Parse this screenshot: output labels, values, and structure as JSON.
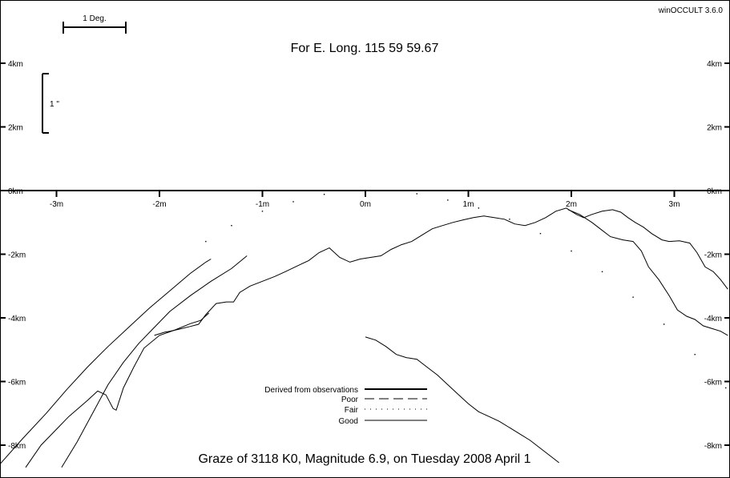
{
  "window": {
    "version": "winOCCULT 3.6.0"
  },
  "chart_data": {
    "type": "line",
    "title": "For E. Long.  115 59 59.67",
    "footer": "Graze of     3118   K0,  Magnitude   6.9,  on Tuesday  2008  April   1",
    "scale_bars": {
      "degree_label": "1 Deg.",
      "arcsec_label": "1 \""
    },
    "xlim": [
      -3.55,
      3.52
    ],
    "ylim": [
      -8.7,
      6
    ],
    "x_ticks": [
      {
        "value": -3,
        "label": "-3m"
      },
      {
        "value": -2,
        "label": "-2m"
      },
      {
        "value": -1,
        "label": "-1m"
      },
      {
        "value": 0,
        "label": "0m"
      },
      {
        "value": 1,
        "label": "1m"
      },
      {
        "value": 2,
        "label": "2m"
      },
      {
        "value": 3,
        "label": "3m"
      }
    ],
    "y_ticks": [
      {
        "value": 4,
        "label": "4km"
      },
      {
        "value": 2,
        "label": "2km"
      },
      {
        "value": 0,
        "label": "0km"
      },
      {
        "value": -2,
        "label": "-2km"
      },
      {
        "value": -4,
        "label": "-4km"
      },
      {
        "value": -6,
        "label": "-6km"
      },
      {
        "value": -8,
        "label": "-8km"
      }
    ],
    "legend": [
      {
        "label": "Derived from observations",
        "style": "thick"
      },
      {
        "label": "Poor",
        "style": "dashed"
      },
      {
        "label": "Fair",
        "style": "dotted"
      },
      {
        "label": "Good",
        "style": "solid"
      }
    ],
    "series": [
      {
        "style": "solid",
        "points": [
          [
            -3.55,
            -8.6
          ],
          [
            -3.33,
            -7.8
          ],
          [
            -3.1,
            -7.0
          ],
          [
            -2.9,
            -6.25
          ],
          [
            -2.7,
            -5.55
          ],
          [
            -2.5,
            -4.9
          ],
          [
            -2.3,
            -4.3
          ],
          [
            -2.1,
            -3.7
          ],
          [
            -1.9,
            -3.15
          ],
          [
            -1.7,
            -2.6
          ],
          [
            -1.55,
            -2.25
          ],
          [
            -1.5,
            -2.15
          ]
        ]
      },
      {
        "style": "solid",
        "points": [
          [
            -3.3,
            -8.7
          ],
          [
            -3.15,
            -8.0
          ],
          [
            -3.0,
            -7.5
          ],
          [
            -2.88,
            -7.1
          ],
          [
            -2.7,
            -6.6
          ],
          [
            -2.6,
            -6.3
          ],
          [
            -2.52,
            -6.42
          ],
          [
            -2.45,
            -6.85
          ],
          [
            -2.42,
            -6.9
          ],
          [
            -2.35,
            -6.2
          ],
          [
            -2.25,
            -5.55
          ],
          [
            -2.15,
            -4.95
          ],
          [
            -2.0,
            -4.55
          ],
          [
            -1.85,
            -4.38
          ],
          [
            -1.7,
            -4.18
          ],
          [
            -1.6,
            -4.08
          ],
          [
            -1.52,
            -3.85
          ]
        ]
      },
      {
        "style": "solid",
        "points": [
          [
            -2.95,
            -8.7
          ],
          [
            -2.8,
            -7.9
          ],
          [
            -2.65,
            -7.0
          ],
          [
            -2.5,
            -6.1
          ],
          [
            -2.35,
            -5.4
          ],
          [
            -2.2,
            -4.8
          ],
          [
            -2.05,
            -4.3
          ],
          [
            -1.9,
            -3.8
          ],
          [
            -1.7,
            -3.3
          ],
          [
            -1.5,
            -2.85
          ],
          [
            -1.3,
            -2.45
          ],
          [
            -1.15,
            -2.05
          ]
        ]
      },
      {
        "style": "solid",
        "points": [
          [
            -2.05,
            -4.55
          ],
          [
            -1.95,
            -4.45
          ],
          [
            -1.9,
            -4.42
          ],
          [
            -1.8,
            -4.35
          ],
          [
            -1.7,
            -4.27
          ],
          [
            -1.62,
            -4.2
          ],
          [
            -1.55,
            -3.9
          ],
          [
            -1.45,
            -3.55
          ],
          [
            -1.35,
            -3.5
          ],
          [
            -1.28,
            -3.5
          ],
          [
            -1.22,
            -3.2
          ],
          [
            -1.12,
            -3.0
          ],
          [
            -1.0,
            -2.85
          ],
          [
            -0.88,
            -2.7
          ],
          [
            -0.78,
            -2.55
          ],
          [
            -0.65,
            -2.35
          ],
          [
            -0.55,
            -2.2
          ],
          [
            -0.45,
            -1.95
          ],
          [
            -0.35,
            -1.8
          ],
          [
            -0.25,
            -2.1
          ],
          [
            -0.15,
            -2.25
          ],
          [
            -0.05,
            -2.15
          ],
          [
            0.05,
            -2.1
          ],
          [
            0.15,
            -2.05
          ],
          [
            0.25,
            -1.85
          ],
          [
            0.35,
            -1.7
          ],
          [
            0.45,
            -1.6
          ],
          [
            0.55,
            -1.4
          ],
          [
            0.65,
            -1.2
          ],
          [
            0.75,
            -1.1
          ],
          [
            0.85,
            -1.0
          ],
          [
            0.95,
            -0.92
          ],
          [
            1.05,
            -0.85
          ],
          [
            1.15,
            -0.8
          ],
          [
            1.25,
            -0.85
          ],
          [
            1.35,
            -0.9
          ],
          [
            1.45,
            -1.05
          ],
          [
            1.55,
            -1.1
          ],
          [
            1.65,
            -1.0
          ],
          [
            1.75,
            -0.85
          ],
          [
            1.85,
            -0.65
          ],
          [
            1.95,
            -0.55
          ],
          [
            2.05,
            -0.75
          ],
          [
            2.12,
            -0.85
          ],
          [
            2.2,
            -0.75
          ],
          [
            2.3,
            -0.65
          ],
          [
            2.4,
            -0.6
          ],
          [
            2.48,
            -0.68
          ],
          [
            2.55,
            -0.85
          ],
          [
            2.62,
            -1.0
          ],
          [
            2.7,
            -1.15
          ],
          [
            2.78,
            -1.35
          ],
          [
            2.88,
            -1.55
          ],
          [
            2.95,
            -1.6
          ],
          [
            3.05,
            -1.58
          ],
          [
            3.15,
            -1.65
          ],
          [
            3.22,
            -1.95
          ],
          [
            3.3,
            -2.4
          ],
          [
            3.38,
            -2.55
          ],
          [
            3.45,
            -2.8
          ],
          [
            3.52,
            -3.1
          ]
        ]
      },
      {
        "style": "solid",
        "points": [
          [
            1.97,
            -0.6
          ],
          [
            2.08,
            -0.75
          ],
          [
            2.2,
            -1.0
          ],
          [
            2.3,
            -1.25
          ],
          [
            2.38,
            -1.45
          ],
          [
            2.5,
            -1.55
          ],
          [
            2.6,
            -1.6
          ],
          [
            2.68,
            -1.9
          ],
          [
            2.75,
            -2.4
          ],
          [
            2.85,
            -2.8
          ],
          [
            2.95,
            -3.3
          ],
          [
            3.03,
            -3.75
          ],
          [
            3.12,
            -3.95
          ],
          [
            3.2,
            -4.05
          ],
          [
            3.28,
            -4.25
          ],
          [
            3.38,
            -4.35
          ],
          [
            3.45,
            -4.42
          ],
          [
            3.52,
            -4.55
          ]
        ]
      },
      {
        "style": "solid",
        "points": [
          [
            0.0,
            -4.6
          ],
          [
            0.1,
            -4.7
          ],
          [
            0.2,
            -4.9
          ],
          [
            0.3,
            -5.15
          ],
          [
            0.4,
            -5.25
          ],
          [
            0.5,
            -5.3
          ],
          [
            0.6,
            -5.55
          ],
          [
            0.7,
            -5.8
          ],
          [
            0.8,
            -6.1
          ],
          [
            0.9,
            -6.4
          ],
          [
            1.0,
            -6.7
          ],
          [
            1.1,
            -6.95
          ],
          [
            1.2,
            -7.1
          ],
          [
            1.3,
            -7.25
          ],
          [
            1.4,
            -7.45
          ],
          [
            1.5,
            -7.65
          ],
          [
            1.6,
            -7.85
          ],
          [
            1.7,
            -8.1
          ],
          [
            1.8,
            -8.35
          ],
          [
            1.88,
            -8.55
          ]
        ]
      },
      {
        "style": "dotted",
        "points": [
          [
            -1.55,
            -1.6
          ],
          [
            -1.3,
            -1.1
          ],
          [
            -1.0,
            -0.65
          ],
          [
            -0.7,
            -0.35
          ],
          [
            -0.4,
            -0.12
          ],
          [
            -0.1,
            0.0
          ],
          [
            0.2,
            0.0
          ],
          [
            0.5,
            -0.1
          ],
          [
            0.8,
            -0.3
          ],
          [
            1.1,
            -0.55
          ],
          [
            1.4,
            -0.9
          ],
          [
            1.7,
            -1.35
          ],
          [
            2.0,
            -1.9
          ],
          [
            2.3,
            -2.55
          ],
          [
            2.6,
            -3.35
          ],
          [
            2.9,
            -4.2
          ],
          [
            3.2,
            -5.15
          ],
          [
            3.5,
            -6.2
          ],
          [
            3.8,
            -7.3
          ],
          [
            4.1,
            -8.5
          ]
        ]
      }
    ]
  }
}
